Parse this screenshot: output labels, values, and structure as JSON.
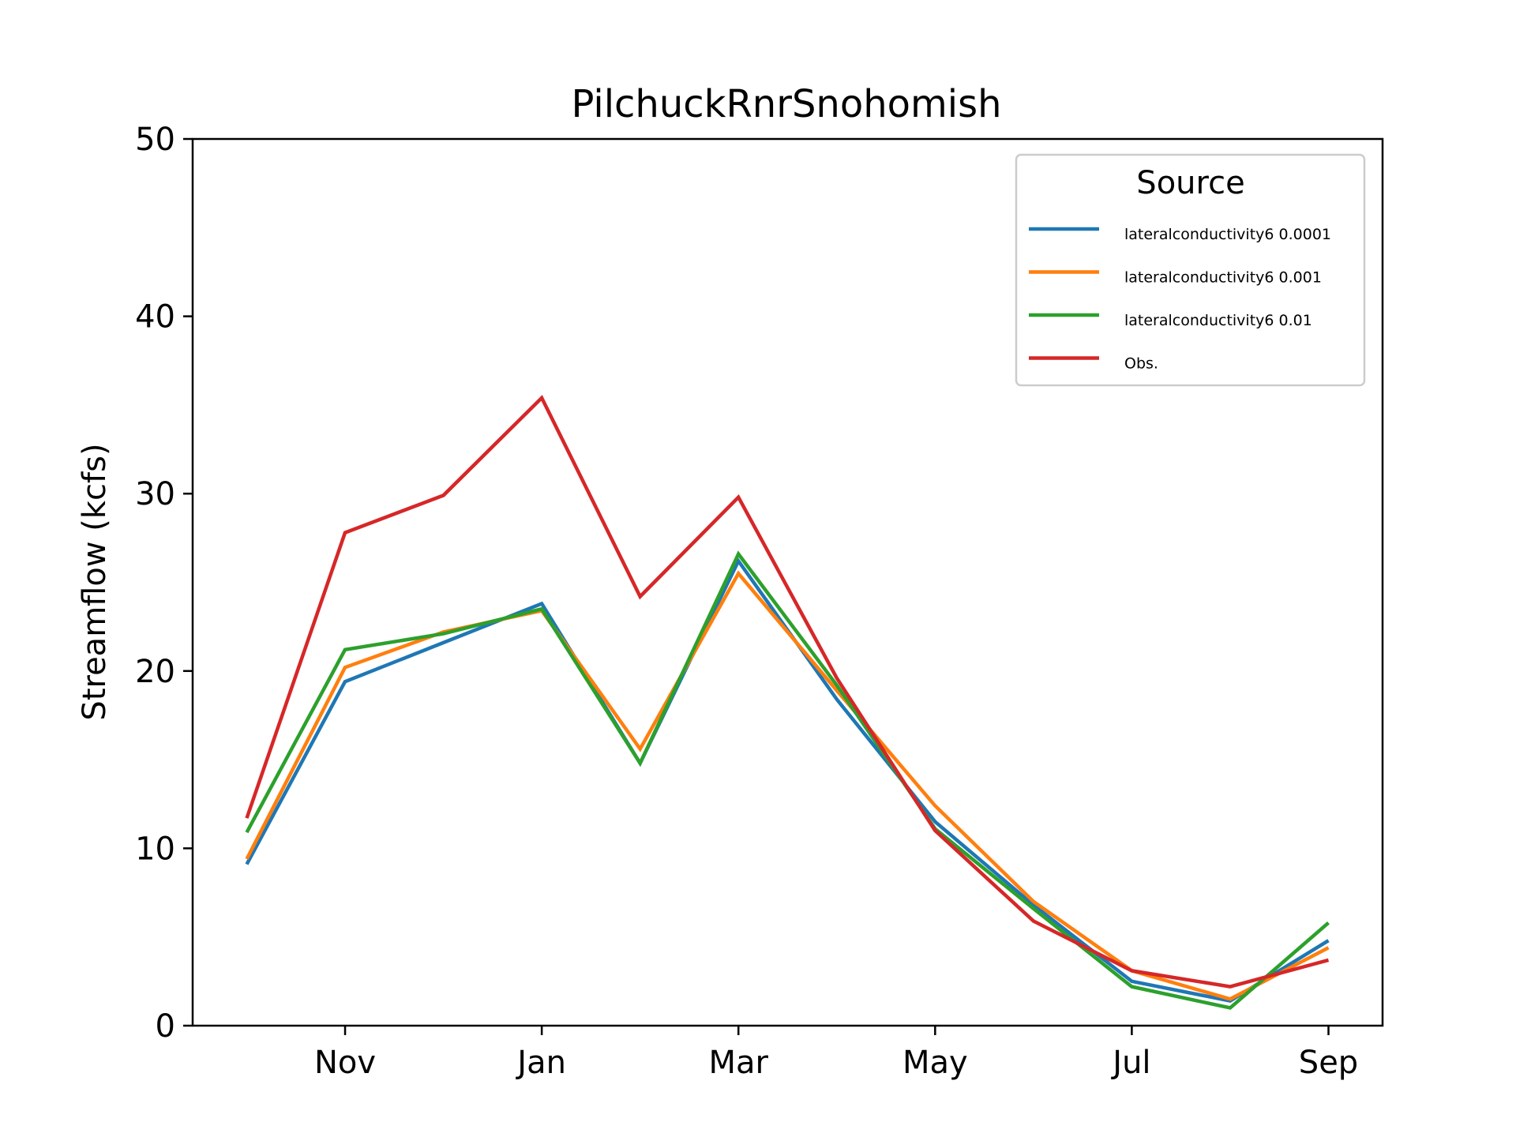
{
  "chart_data": {
    "type": "line",
    "title": "PilchuckRnrSnohomish",
    "xlabel": "",
    "ylabel": "Streamflow (kcfs)",
    "x": [
      0,
      1,
      2,
      3,
      4,
      5,
      6,
      7,
      8,
      9,
      10,
      11
    ],
    "xticks": [
      {
        "x": 1,
        "label": "Nov"
      },
      {
        "x": 3,
        "label": "Jan"
      },
      {
        "x": 5,
        "label": "Mar"
      },
      {
        "x": 7,
        "label": "May"
      },
      {
        "x": 9,
        "label": "Jul"
      },
      {
        "x": 11,
        "label": "Sep"
      }
    ],
    "xlim": [
      -0.55,
      11.55
    ],
    "ylim": [
      0,
      50
    ],
    "yticks": [
      0,
      10,
      20,
      30,
      40,
      50
    ],
    "grid": false,
    "legend": {
      "title": "Source",
      "placement": "top-right"
    },
    "series": [
      {
        "name": "lateralconductivity6 0.0001",
        "color": "#1f77b4",
        "values": [
          9.1,
          19.4,
          21.6,
          23.8,
          14.8,
          26.2,
          18.4,
          11.5,
          6.8,
          2.5,
          1.4,
          4.8
        ]
      },
      {
        "name": "lateralconductivity6 0.001",
        "color": "#ff7f0e",
        "values": [
          9.4,
          20.2,
          22.2,
          23.4,
          15.6,
          25.5,
          18.9,
          12.4,
          7.0,
          3.1,
          1.5,
          4.4
        ]
      },
      {
        "name": "lateralconductivity6 0.01",
        "color": "#2ca02c",
        "values": [
          10.9,
          21.2,
          22.1,
          23.5,
          14.8,
          26.6,
          19.2,
          11.1,
          6.6,
          2.2,
          1.0,
          5.8
        ]
      },
      {
        "name": "Obs.",
        "color": "#d62728",
        "values": [
          11.7,
          27.8,
          29.9,
          35.4,
          24.2,
          29.8,
          19.6,
          11.0,
          5.9,
          3.1,
          2.2,
          3.7
        ]
      }
    ]
  }
}
